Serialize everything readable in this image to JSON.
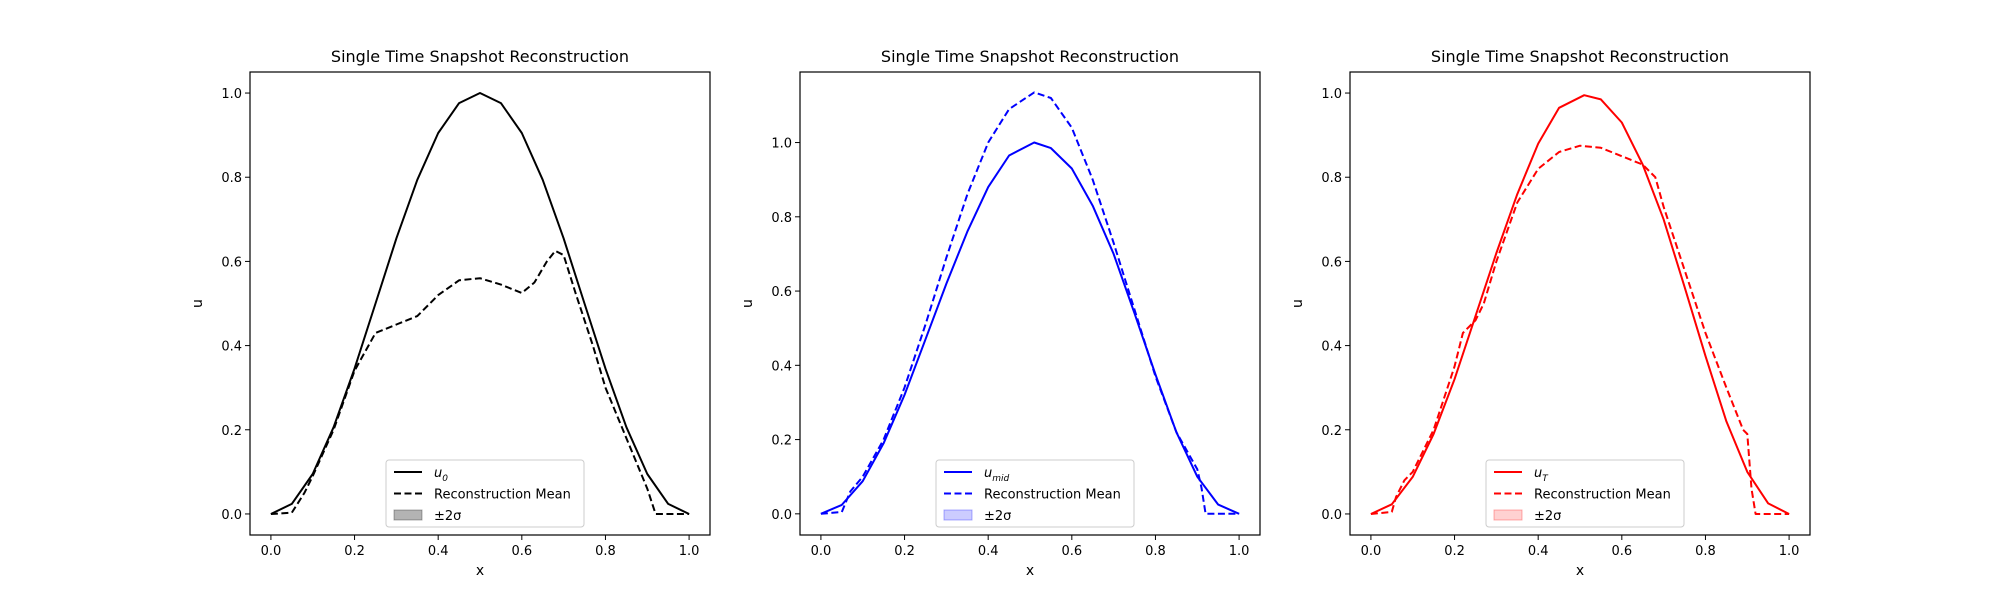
{
  "chart_data": [
    {
      "type": "line",
      "title": "Single Time Snapshot Reconstruction",
      "xlabel": "x",
      "ylabel": "u",
      "xlim": [
        -0.05,
        1.05
      ],
      "ylim": [
        -0.05,
        1.05
      ],
      "xticks": [
        "0.0",
        "0.2",
        "0.4",
        "0.6",
        "0.8",
        "1.0"
      ],
      "yticks": [
        "0.0",
        "0.2",
        "0.4",
        "0.6",
        "0.8",
        "1.0"
      ],
      "grid": false,
      "legend_position": "lower center",
      "color": "#000000",
      "fill_color": "#808080",
      "legend": [
        {
          "label": "u",
          "sub": "0",
          "style": "solid"
        },
        {
          "label": "Reconstruction Mean",
          "style": "dashed"
        },
        {
          "label": "±2σ",
          "style": "patch"
        }
      ],
      "series": [
        {
          "style": "solid",
          "x": [
            0.0,
            0.05,
            0.1,
            0.15,
            0.2,
            0.25,
            0.3,
            0.35,
            0.4,
            0.45,
            0.5,
            0.55,
            0.6,
            0.65,
            0.7,
            0.75,
            0.8,
            0.85,
            0.9,
            0.95,
            1.0
          ],
          "y": [
            0.0,
            0.024,
            0.095,
            0.206,
            0.345,
            0.5,
            0.655,
            0.794,
            0.905,
            0.976,
            1.0,
            0.976,
            0.905,
            0.794,
            0.655,
            0.5,
            0.345,
            0.206,
            0.095,
            0.024,
            0.0
          ]
        },
        {
          "style": "dashed",
          "x": [
            0.0,
            0.05,
            0.08,
            0.1,
            0.15,
            0.2,
            0.25,
            0.3,
            0.35,
            0.4,
            0.45,
            0.5,
            0.55,
            0.6,
            0.63,
            0.66,
            0.68,
            0.7,
            0.73,
            0.77,
            0.8,
            0.85,
            0.9,
            0.92,
            0.93,
            1.0
          ],
          "y": [
            0.0,
            0.003,
            0.05,
            0.09,
            0.2,
            0.34,
            0.43,
            0.45,
            0.47,
            0.52,
            0.555,
            0.56,
            0.545,
            0.525,
            0.55,
            0.6,
            0.625,
            0.615,
            0.52,
            0.4,
            0.3,
            0.18,
            0.06,
            0.0,
            0.0,
            0.0
          ]
        }
      ]
    },
    {
      "type": "line",
      "title": "Single Time Snapshot Reconstruction",
      "xlabel": "x",
      "ylabel": "u",
      "xlim": [
        -0.05,
        1.05
      ],
      "ylim": [
        -0.057,
        1.19
      ],
      "xticks": [
        "0.0",
        "0.2",
        "0.4",
        "0.6",
        "0.8",
        "1.0"
      ],
      "yticks": [
        "0.0",
        "0.2",
        "0.4",
        "0.6",
        "0.8",
        "1.0"
      ],
      "grid": false,
      "legend_position": "lower center",
      "color": "#0000ff",
      "fill_color": "#aaaaff",
      "legend": [
        {
          "label": "u",
          "sub": "mid",
          "style": "solid"
        },
        {
          "label": "Reconstruction Mean",
          "style": "dashed"
        },
        {
          "label": "±2σ",
          "style": "patch"
        }
      ],
      "series": [
        {
          "style": "solid",
          "x": [
            0.0,
            0.05,
            0.1,
            0.15,
            0.2,
            0.25,
            0.3,
            0.35,
            0.4,
            0.45,
            0.51,
            0.55,
            0.6,
            0.65,
            0.7,
            0.75,
            0.8,
            0.85,
            0.9,
            0.95,
            1.0
          ],
          "y": [
            0.0,
            0.024,
            0.088,
            0.19,
            0.32,
            0.47,
            0.62,
            0.76,
            0.88,
            0.965,
            1.0,
            0.985,
            0.93,
            0.83,
            0.7,
            0.54,
            0.375,
            0.22,
            0.1,
            0.025,
            0.0
          ]
        },
        {
          "style": "dashed",
          "x": [
            0.0,
            0.05,
            0.07,
            0.1,
            0.15,
            0.2,
            0.25,
            0.3,
            0.35,
            0.4,
            0.45,
            0.51,
            0.55,
            0.6,
            0.65,
            0.7,
            0.75,
            0.8,
            0.85,
            0.9,
            0.91,
            0.92,
            0.95,
            1.0
          ],
          "y": [
            0.0,
            0.005,
            0.06,
            0.1,
            0.2,
            0.34,
            0.51,
            0.69,
            0.86,
            1.0,
            1.09,
            1.135,
            1.12,
            1.04,
            0.9,
            0.73,
            0.55,
            0.37,
            0.22,
            0.12,
            0.07,
            0.0,
            0.0,
            0.0
          ]
        }
      ]
    },
    {
      "type": "line",
      "title": "Single Time Snapshot Reconstruction",
      "xlabel": "x",
      "ylabel": "u",
      "xlim": [
        -0.05,
        1.05
      ],
      "ylim": [
        -0.05,
        1.05
      ],
      "xticks": [
        "0.0",
        "0.2",
        "0.4",
        "0.6",
        "0.8",
        "1.0"
      ],
      "yticks": [
        "0.0",
        "0.2",
        "0.4",
        "0.6",
        "0.8",
        "1.0"
      ],
      "grid": false,
      "legend_position": "lower center",
      "color": "#ff0000",
      "fill_color": "#ffb3b3",
      "legend": [
        {
          "label": "u",
          "sub": "T",
          "style": "solid"
        },
        {
          "label": "Reconstruction Mean",
          "style": "dashed"
        },
        {
          "label": "±2σ",
          "style": "patch"
        }
      ],
      "series": [
        {
          "style": "solid",
          "x": [
            0.0,
            0.05,
            0.1,
            0.15,
            0.2,
            0.25,
            0.3,
            0.35,
            0.4,
            0.45,
            0.51,
            0.55,
            0.6,
            0.65,
            0.7,
            0.75,
            0.8,
            0.85,
            0.9,
            0.95,
            1.0
          ],
          "y": [
            0.0,
            0.023,
            0.088,
            0.19,
            0.32,
            0.47,
            0.62,
            0.76,
            0.88,
            0.965,
            0.995,
            0.985,
            0.93,
            0.83,
            0.7,
            0.54,
            0.375,
            0.22,
            0.1,
            0.025,
            0.0
          ]
        },
        {
          "style": "dashed",
          "x": [
            0.0,
            0.05,
            0.06,
            0.08,
            0.1,
            0.15,
            0.2,
            0.22,
            0.25,
            0.27,
            0.3,
            0.35,
            0.4,
            0.45,
            0.5,
            0.55,
            0.6,
            0.65,
            0.68,
            0.7,
            0.75,
            0.8,
            0.85,
            0.89,
            0.9,
            0.91,
            0.92,
            0.95,
            1.0
          ],
          "y": [
            0.0,
            0.005,
            0.04,
            0.08,
            0.1,
            0.2,
            0.35,
            0.43,
            0.46,
            0.5,
            0.6,
            0.74,
            0.82,
            0.86,
            0.875,
            0.87,
            0.85,
            0.83,
            0.8,
            0.73,
            0.58,
            0.43,
            0.3,
            0.2,
            0.19,
            0.06,
            0.0,
            0.0,
            0.0
          ]
        }
      ]
    }
  ]
}
